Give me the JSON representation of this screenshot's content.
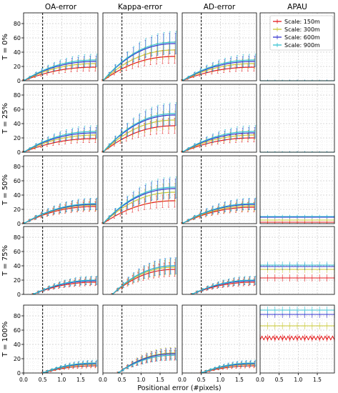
{
  "chart_data": {
    "type": "line",
    "xlabel": "Positional error (#pixels)",
    "x_ticks": [
      "0.0",
      "0.5",
      "1.0",
      "1.5"
    ],
    "y_ticks": [
      "0",
      "20",
      "40",
      "60",
      "80"
    ],
    "xlim": [
      0.0,
      1.95
    ],
    "ylim": [
      0,
      95
    ],
    "vline_x": 0.5,
    "grid": true,
    "legend_position": "top-right of APAU column, first row",
    "columns": [
      "OA-error",
      "Kappa-error",
      "AD-error",
      "APAU"
    ],
    "rows": [
      "T = 0%",
      "T = 25%",
      "T = 50%",
      "T = 75%",
      "T = 100%"
    ],
    "series": [
      {
        "name": "Scale: 150m",
        "color": "#e41a1c"
      },
      {
        "name": "Scale: 300m",
        "color": "#c8c832"
      },
      {
        "name": "Scale: 600m",
        "color": "#3333cc"
      },
      {
        "name": "Scale: 900m",
        "color": "#30c0d0"
      }
    ],
    "panels": [
      {
        "row": 0,
        "col": 0,
        "start_x": 0.0,
        "end_values": [
          19,
          24,
          27,
          29
        ]
      },
      {
        "row": 0,
        "col": 1,
        "start_x": 0.0,
        "end_values": [
          34,
          43,
          52,
          54
        ]
      },
      {
        "row": 0,
        "col": 2,
        "start_x": 0.0,
        "end_values": [
          19,
          24,
          27,
          29
        ]
      },
      {
        "row": 0,
        "col": 3,
        "flat": true,
        "values": [
          0,
          0,
          0,
          0
        ]
      },
      {
        "row": 1,
        "col": 0,
        "start_x": 0.0,
        "end_values": [
          19,
          24,
          27,
          29
        ]
      },
      {
        "row": 1,
        "col": 1,
        "start_x": 0.0,
        "end_values": [
          37,
          45,
          52,
          54
        ]
      },
      {
        "row": 1,
        "col": 2,
        "start_x": 0.0,
        "end_values": [
          20,
          24,
          27,
          29
        ]
      },
      {
        "row": 1,
        "col": 3,
        "flat": true,
        "values": [
          0,
          0,
          0,
          0
        ]
      },
      {
        "row": 2,
        "col": 0,
        "start_x": 0.0,
        "end_values": [
          24,
          26,
          27,
          28
        ]
      },
      {
        "row": 2,
        "col": 1,
        "start_x": 0.0,
        "end_values": [
          32,
          44,
          49,
          51
        ]
      },
      {
        "row": 2,
        "col": 2,
        "start_x": 0.0,
        "end_values": [
          23,
          25,
          27,
          28
        ]
      },
      {
        "row": 2,
        "col": 3,
        "flat": true,
        "values": [
          2,
          5,
          9,
          10
        ]
      },
      {
        "row": 3,
        "col": 0,
        "start_x": 0.25,
        "end_values": [
          17,
          19,
          19,
          20
        ]
      },
      {
        "row": 3,
        "col": 1,
        "start_x": 0.25,
        "end_values": [
          35,
          38,
          40,
          40
        ]
      },
      {
        "row": 3,
        "col": 2,
        "start_x": 0.25,
        "end_values": [
          17,
          19,
          19,
          20
        ]
      },
      {
        "row": 3,
        "col": 3,
        "flat": true,
        "values": [
          23,
          35,
          39,
          41
        ]
      },
      {
        "row": 4,
        "col": 0,
        "start_x": 0.5,
        "end_values": [
          10,
          12,
          13,
          14
        ]
      },
      {
        "row": 4,
        "col": 1,
        "start_x": 0.4,
        "end_values": [
          25,
          28,
          27,
          25
        ]
      },
      {
        "row": 4,
        "col": 2,
        "start_x": 0.5,
        "end_values": [
          10,
          12,
          13,
          14
        ]
      },
      {
        "row": 4,
        "col": 3,
        "flat": true,
        "values": [
          49,
          66,
          82,
          88
        ]
      }
    ]
  }
}
